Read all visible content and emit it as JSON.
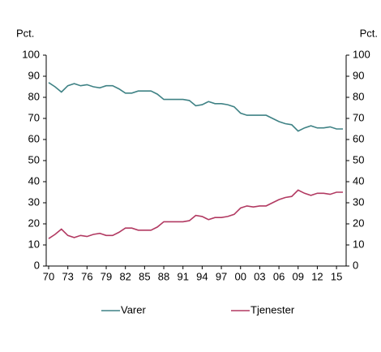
{
  "chart_data": {
    "type": "line",
    "ylabel_left": "Pct.",
    "ylabel_right": "Pct.",
    "categories": [
      "70",
      null,
      null,
      "73",
      null,
      null,
      "76",
      null,
      null,
      "79",
      null,
      null,
      "82",
      null,
      null,
      "85",
      null,
      null,
      "88",
      null,
      null,
      "91",
      null,
      null,
      "94",
      null,
      null,
      "97",
      null,
      null,
      "00",
      null,
      null,
      "03",
      null,
      null,
      "06",
      null,
      null,
      "09",
      null,
      null,
      "12",
      null,
      null,
      "15",
      null
    ],
    "series": [
      {
        "name": "Varer",
        "color": "#3f8285",
        "values": [
          87,
          85,
          82.5,
          85.5,
          86.5,
          85.5,
          86,
          85,
          84.5,
          85.5,
          85.5,
          84,
          82,
          82,
          83,
          83,
          83,
          81.5,
          79,
          79,
          79,
          79,
          78.5,
          76,
          76.5,
          78,
          77,
          77,
          76.5,
          75.5,
          72.5,
          71.5,
          71.5,
          71.5,
          71.5,
          70,
          68.5,
          67.5,
          67,
          64,
          65.5,
          66.5,
          65.5,
          65.5,
          66,
          65,
          65
        ]
      },
      {
        "name": "Tjenester",
        "color": "#b23a62",
        "values": [
          13,
          15,
          17.5,
          14.5,
          13.5,
          14.5,
          14,
          15,
          15.5,
          14.5,
          14.5,
          16,
          18,
          18,
          17,
          17,
          17,
          18.5,
          21,
          21,
          21,
          21,
          21.5,
          24,
          23.5,
          22,
          23,
          23,
          23.5,
          24.5,
          27.5,
          28.5,
          28,
          28.5,
          28.5,
          30,
          31.5,
          32.5,
          33,
          36,
          34.5,
          33.5,
          34.5,
          34.5,
          34,
          35,
          35
        ]
      }
    ],
    "ylim": [
      0,
      100
    ],
    "yticks": [
      0,
      10,
      20,
      30,
      40,
      50,
      60,
      70,
      80,
      90,
      100
    ],
    "legend": "bottom"
  }
}
